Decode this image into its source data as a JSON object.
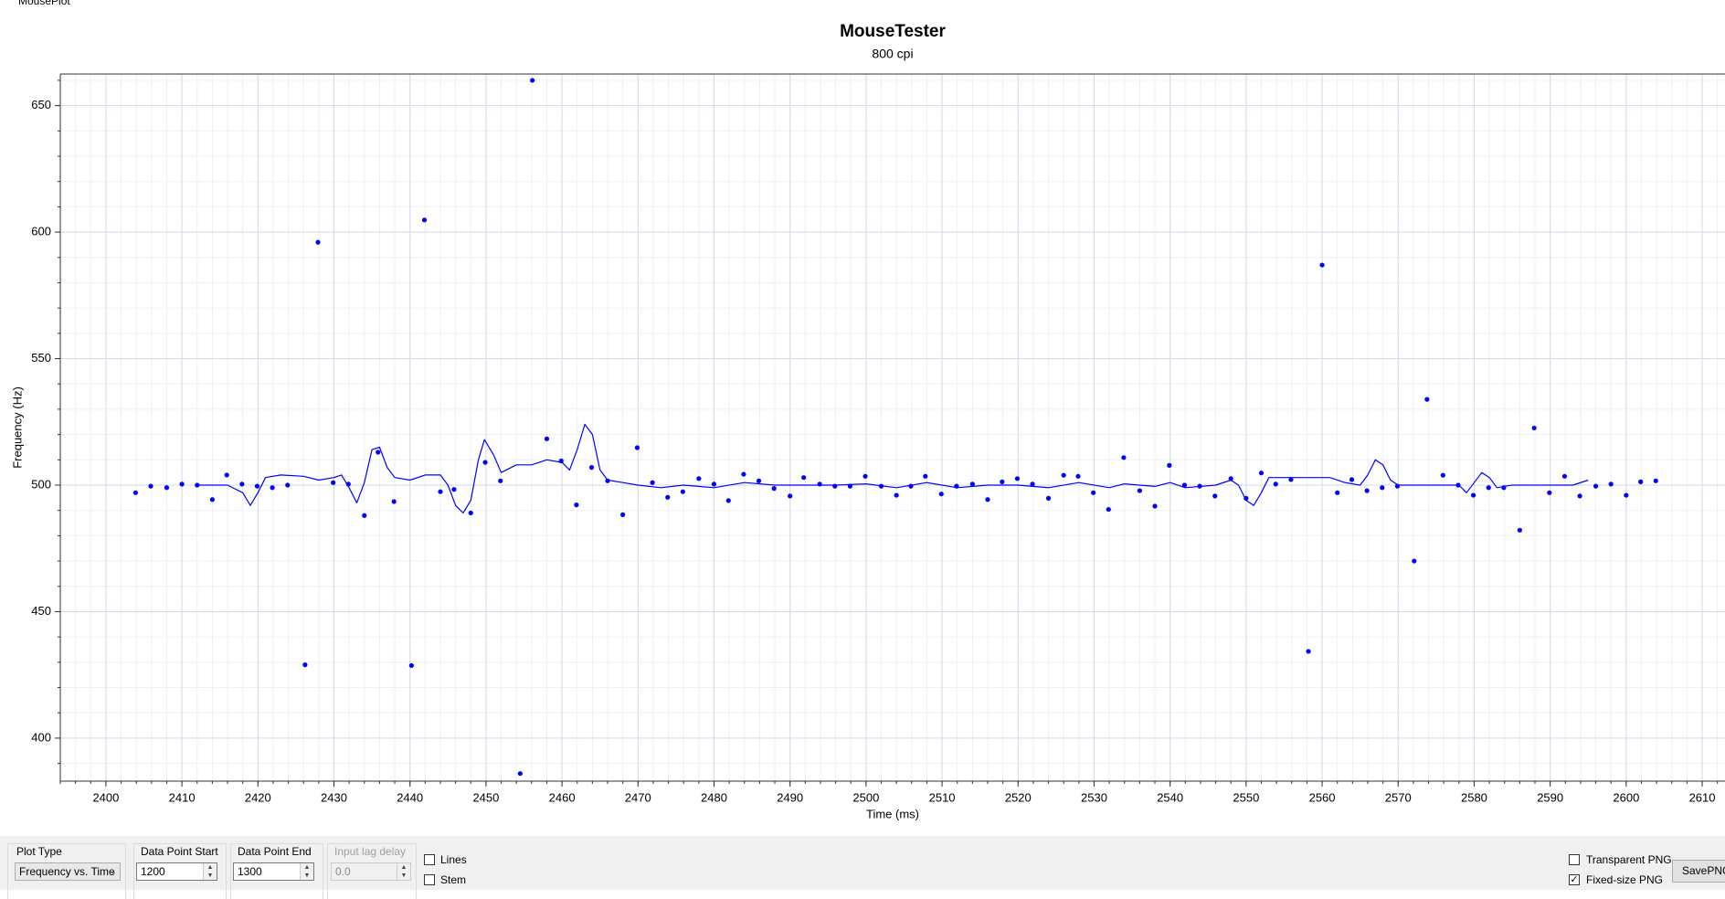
{
  "window": {
    "title": "MousePlot"
  },
  "chart_data": {
    "type": "scatter",
    "title": "MouseTester",
    "subtitle": "800 cpi",
    "xlabel": "Time (ms)",
    "ylabel": "Frequency (Hz)",
    "xlim": [
      2394,
      2613
    ],
    "ylim": [
      383,
      662.5
    ],
    "xticks": [
      2400,
      2410,
      2420,
      2430,
      2440,
      2450,
      2460,
      2470,
      2480,
      2490,
      2500,
      2510,
      2520,
      2530,
      2540,
      2550,
      2560,
      2570,
      2580,
      2590,
      2600,
      2610
    ],
    "yticks": [
      400,
      450,
      500,
      550,
      600,
      650
    ],
    "grid": true,
    "minor_grid": 5,
    "series": [
      {
        "style": "markers",
        "color": "#0000ff",
        "x": [
          2403.9,
          2405.9,
          2408,
          2410,
          2412,
          2414,
          2415.9,
          2417.9,
          2419.9,
          2421.9,
          2423.9,
          2426.2,
          2427.9,
          2429.9,
          2431.9,
          2434,
          2435.8,
          2437.9,
          2440.2,
          2441.9,
          2444,
          2445.8,
          2448,
          2449.9,
          2451.9,
          2454.5,
          2456.1,
          2458,
          2459.9,
          2461.9,
          2463.9,
          2466,
          2468,
          2469.9,
          2471.9,
          2473.9,
          2475.9,
          2478,
          2480,
          2481.9,
          2483.9,
          2485.9,
          2487.9,
          2490,
          2491.8,
          2493.9,
          2495.9,
          2497.9,
          2499.9,
          2502,
          2504,
          2505.9,
          2507.8,
          2509.9,
          2511.9,
          2514,
          2516,
          2517.9,
          2519.9,
          2521.9,
          2524,
          2526,
          2527.9,
          2529.9,
          2531.9,
          2533.9,
          2536,
          2538,
          2539.9,
          2541.9,
          2543.9,
          2545.9,
          2548,
          2550,
          2552,
          2553.9,
          2555.9,
          2558.2,
          2560,
          2562,
          2563.9,
          2565.9,
          2567.9,
          2569.9,
          2572.1,
          2573.8,
          2575.9,
          2577.9,
          2579.9,
          2581.9,
          2583.9,
          2586,
          2587.9,
          2589.9,
          2591.9,
          2593.9,
          2596,
          2598,
          2600,
          2601.9,
          2603.9
        ],
        "values": [
          497,
          499.6,
          499,
          500.4,
          500,
          494.3,
          504,
          500.4,
          499.6,
          499,
          500,
          429,
          596,
          501,
          500.4,
          488,
          513,
          493.5,
          428.7,
          604.8,
          497.4,
          498.3,
          489,
          509,
          501.7,
          386,
          660,
          518.3,
          509.6,
          492.2,
          507,
          501.7,
          488.3,
          514.8,
          501,
          495.2,
          497.4,
          502.6,
          500.4,
          493.9,
          504.3,
          501.7,
          498.7,
          495.7,
          503,
          500.4,
          499.6,
          499.6,
          503.5,
          499.6,
          496,
          499.6,
          503.5,
          496.5,
          499.6,
          500.4,
          494.3,
          501.3,
          502.6,
          500.4,
          494.8,
          503.9,
          503.5,
          497,
          490.4,
          510.9,
          497.8,
          491.7,
          507.8,
          500,
          499.6,
          495.7,
          502.6,
          494.8,
          504.8,
          500.4,
          502.2,
          434.3,
          587,
          497,
          502.2,
          497.8,
          499,
          499.6,
          470,
          533.9,
          503.9,
          500,
          496,
          499,
          499,
          482.2,
          522.6,
          497,
          503.5,
          495.7,
          499.6,
          500.4,
          496,
          501.3,
          501.7
        ]
      },
      {
        "style": "line",
        "color": "#0000ff",
        "x": [
          2412,
          2416,
          2418,
          2419,
          2420,
          2421,
          2423,
          2426,
          2428,
          2430,
          2431,
          2432,
          2433,
          2434,
          2435,
          2436,
          2437,
          2438,
          2440,
          2442,
          2444,
          2445,
          2446,
          2447,
          2448,
          2449,
          2449.8,
          2451,
          2452,
          2454,
          2456,
          2458,
          2460,
          2461,
          2462,
          2463,
          2464,
          2465,
          2466,
          2468,
          2470,
          2473,
          2476,
          2480,
          2484,
          2488,
          2492,
          2496,
          2500,
          2504,
          2508,
          2512,
          2516,
          2520,
          2524,
          2528,
          2532,
          2534,
          2538,
          2540,
          2542,
          2546,
          2548,
          2549,
          2550,
          2551,
          2552,
          2553,
          2555,
          2558,
          2561,
          2563,
          2565,
          2566,
          2567,
          2568,
          2569,
          2570,
          2573,
          2576,
          2578,
          2579,
          2580,
          2581,
          2582,
          2583,
          2585,
          2590,
          2593,
          2595
        ],
        "values": [
          500,
          500,
          497,
          492,
          497,
          503,
          504,
          503.5,
          502,
          503,
          504,
          499,
          493,
          501,
          514,
          515,
          507,
          503,
          502,
          504,
          504,
          500,
          492,
          489,
          494,
          510,
          518,
          512,
          505,
          508,
          508,
          510,
          509,
          506,
          514,
          524,
          520,
          506,
          502,
          501,
          500,
          499,
          500,
          499,
          501,
          500,
          500,
          500,
          500.5,
          499,
          501,
          499,
          500,
          500,
          499,
          501,
          499,
          500.5,
          499.5,
          501,
          499,
          500,
          502,
          500,
          494,
          492,
          497,
          503,
          503,
          503,
          503,
          501,
          500,
          504,
          510,
          508,
          502,
          500,
          500,
          500,
          500,
          497,
          501,
          505,
          503,
          499,
          500,
          500,
          500,
          502
        ]
      }
    ]
  },
  "controls": {
    "plot_type": {
      "label": "Plot Type",
      "value": "Frequency vs. Time"
    },
    "start": {
      "label": "Data Point Start",
      "value": "1200"
    },
    "end": {
      "label": "Data Point End",
      "value": "1300"
    },
    "lag": {
      "label": "Input lag delay",
      "value": "0.0"
    },
    "lines": {
      "label": "Lines",
      "checked": false
    },
    "stem": {
      "label": "Stem",
      "checked": false
    },
    "transparent": {
      "label": "Transparent PNG",
      "checked": false
    },
    "fixed": {
      "label": "Fixed-size PNG",
      "checked": true
    },
    "save": {
      "label": "SavePNG"
    }
  }
}
